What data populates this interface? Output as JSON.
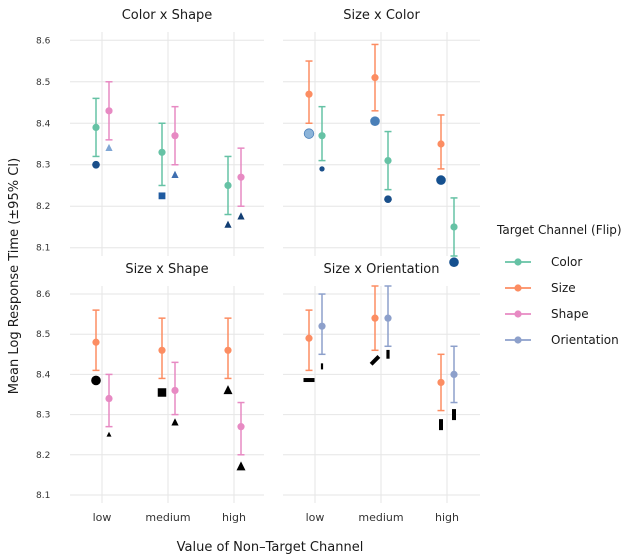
{
  "chart_data": {
    "type": "scatter",
    "subtype": "dot-and-whisker faceted plot",
    "xlabel": "Value of Non–Target Channel",
    "ylabel": "Mean Log Response Time (±95% CI)",
    "categories": [
      "low",
      "medium",
      "high"
    ],
    "ylim": [
      8.08,
      8.62
    ],
    "yticks": [
      "8.1",
      "8.2",
      "8.3",
      "8.4",
      "8.5",
      "8.6"
    ],
    "grid": true,
    "legend": {
      "title": "Target Channel (Flip)",
      "position": "right",
      "entries": [
        {
          "name": "Color",
          "color": "#66c2a5"
        },
        {
          "name": "Size",
          "color": "#fc8d62"
        },
        {
          "name": "Shape",
          "color": "#e78ac3"
        },
        {
          "name": "Orientation",
          "color": "#8da0cb"
        }
      ]
    },
    "panels": [
      {
        "title": "Color x Shape",
        "series": [
          {
            "name": "Color",
            "color": "#66c2a5",
            "values": [
              8.39,
              8.33,
              8.25
            ],
            "lower": [
              8.32,
              8.25,
              8.18
            ],
            "upper": [
              8.46,
              8.4,
              8.32
            ]
          },
          {
            "name": "Shape",
            "color": "#e78ac3",
            "values": [
              8.43,
              8.37,
              8.27
            ],
            "lower": [
              8.36,
              8.3,
              8.2
            ],
            "upper": [
              8.5,
              8.44,
              8.34
            ]
          }
        ],
        "markers": [
          {
            "category": "low",
            "slot": 0,
            "value": 8.3,
            "shape": "circle",
            "color": "#1a4f8a"
          },
          {
            "category": "low",
            "slot": 1,
            "value": 8.34,
            "shape": "triangle",
            "color": "#7fa6d4"
          },
          {
            "category": "medium",
            "slot": 0,
            "value": 8.225,
            "shape": "square",
            "color": "#1f5aa0"
          },
          {
            "category": "medium",
            "slot": 1,
            "value": 8.275,
            "shape": "triangle",
            "color": "#3f6fb0"
          },
          {
            "category": "high",
            "slot": 0,
            "value": 8.155,
            "shape": "triangle",
            "color": "#123e73"
          },
          {
            "category": "high",
            "slot": 1,
            "value": 8.175,
            "shape": "triangle",
            "color": "#123e73"
          }
        ]
      },
      {
        "title": "Size x Color",
        "series": [
          {
            "name": "Size",
            "color": "#fc8d62",
            "values": [
              8.47,
              8.51,
              8.35
            ],
            "lower": [
              8.4,
              8.43,
              8.29
            ],
            "upper": [
              8.55,
              8.59,
              8.42
            ]
          },
          {
            "name": "Color",
            "color": "#66c2a5",
            "values": [
              8.37,
              8.31,
              8.15
            ],
            "lower": [
              8.31,
              8.24,
              8.08
            ],
            "upper": [
              8.44,
              8.38,
              8.22
            ]
          }
        ],
        "markers": [
          {
            "category": "low",
            "slot": 0,
            "value": 8.375,
            "shape": "circle",
            "color": "#8cb4d9",
            "size": "large"
          },
          {
            "category": "low",
            "slot": 1,
            "value": 8.29,
            "shape": "circle",
            "color": "#1a4f8a",
            "size": "small"
          },
          {
            "category": "medium",
            "slot": 0,
            "value": 8.405,
            "shape": "circle",
            "color": "#4a7fb8",
            "size": "large"
          },
          {
            "category": "medium",
            "slot": 1,
            "value": 8.217,
            "shape": "circle",
            "color": "#1a4f8a",
            "size": "medium"
          },
          {
            "category": "high",
            "slot": 0,
            "value": 8.263,
            "shape": "circle",
            "color": "#15508f",
            "size": "large"
          },
          {
            "category": "high",
            "slot": 1,
            "value": 8.065,
            "shape": "circle",
            "color": "#15508f",
            "size": "large"
          }
        ]
      },
      {
        "title": "Size x Shape",
        "series": [
          {
            "name": "Size",
            "color": "#fc8d62",
            "values": [
              8.48,
              8.46,
              8.46
            ],
            "lower": [
              8.41,
              8.39,
              8.39
            ],
            "upper": [
              8.56,
              8.54,
              8.54
            ]
          },
          {
            "name": "Shape",
            "color": "#e78ac3",
            "values": [
              8.34,
              8.36,
              8.27
            ],
            "lower": [
              8.27,
              8.3,
              8.2
            ],
            "upper": [
              8.4,
              8.43,
              8.33
            ]
          }
        ],
        "markers": [
          {
            "category": "low",
            "slot": 0,
            "value": 8.385,
            "shape": "circle",
            "color": "#000000",
            "size": "large"
          },
          {
            "category": "low",
            "slot": 1,
            "value": 8.25,
            "shape": "triangle",
            "color": "#000000",
            "size": "small"
          },
          {
            "category": "medium",
            "slot": 0,
            "value": 8.355,
            "shape": "square",
            "color": "#000000",
            "size": "large"
          },
          {
            "category": "medium",
            "slot": 1,
            "value": 8.28,
            "shape": "triangle",
            "color": "#000000",
            "size": "medium"
          },
          {
            "category": "high",
            "slot": 0,
            "value": 8.36,
            "shape": "triangle",
            "color": "#000000",
            "size": "large"
          },
          {
            "category": "high",
            "slot": 1,
            "value": 8.17,
            "shape": "triangle",
            "color": "#000000",
            "size": "large"
          }
        ]
      },
      {
        "title": "Size x Orientation",
        "series": [
          {
            "name": "Size",
            "color": "#fc8d62",
            "values": [
              8.49,
              8.54,
              8.38
            ],
            "lower": [
              8.41,
              8.46,
              8.31
            ],
            "upper": [
              8.56,
              8.62,
              8.45
            ]
          },
          {
            "name": "Orientation",
            "color": "#8da0cb",
            "values": [
              8.52,
              8.54,
              8.4
            ],
            "lower": [
              8.45,
              8.47,
              8.33
            ],
            "upper": [
              8.6,
              8.62,
              8.47
            ]
          }
        ],
        "markers": [
          {
            "category": "low",
            "slot": 0,
            "value": 8.386,
            "shape": "bar-horizontal",
            "color": "#000000",
            "size": "large"
          },
          {
            "category": "low",
            "slot": 1,
            "value": 8.42,
            "shape": "bar-vertical",
            "color": "#000000",
            "size": "small"
          },
          {
            "category": "medium",
            "slot": 0,
            "value": 8.435,
            "shape": "bar-diagonal",
            "color": "#000000",
            "size": "large"
          },
          {
            "category": "medium",
            "slot": 1,
            "value": 8.45,
            "shape": "bar-vertical",
            "color": "#000000",
            "size": "medium"
          },
          {
            "category": "high",
            "slot": 0,
            "value": 8.275,
            "shape": "bar-vertical",
            "color": "#000000",
            "size": "large"
          },
          {
            "category": "high",
            "slot": 1,
            "value": 8.3,
            "shape": "bar-vertical",
            "color": "#000000",
            "size": "large"
          }
        ]
      }
    ]
  }
}
